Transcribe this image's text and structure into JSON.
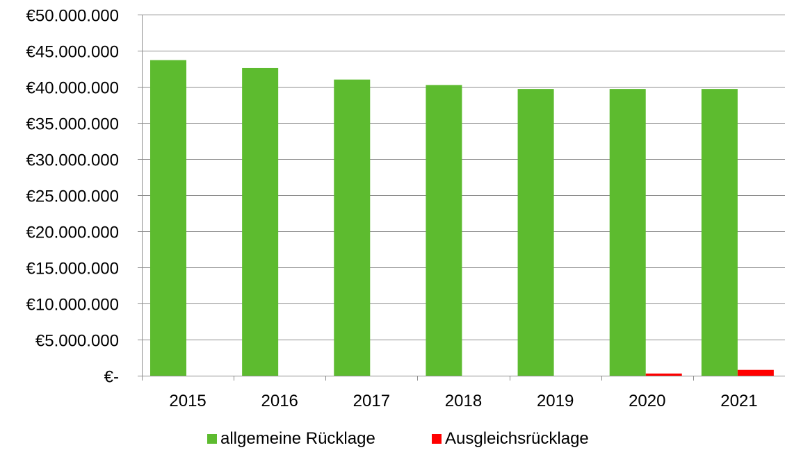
{
  "chart_data": {
    "type": "bar",
    "title": "",
    "xlabel": "",
    "ylabel": "",
    "categories": [
      "2015",
      "2016",
      "2017",
      "2018",
      "2019",
      "2020",
      "2021"
    ],
    "series": [
      {
        "name": "allgemeine Rücklage",
        "color": "#5DBB2F",
        "values": [
          43700000,
          42600000,
          41000000,
          40250000,
          39700000,
          39700000,
          39700000
        ]
      },
      {
        "name": "Ausgleichsrücklage",
        "color": "#FF0000",
        "values": [
          0,
          0,
          0,
          0,
          0,
          300000,
          800000
        ]
      }
    ],
    "ylim": [
      0,
      50000000
    ],
    "yticks": [
      0,
      5000000,
      10000000,
      15000000,
      20000000,
      25000000,
      30000000,
      35000000,
      40000000,
      45000000,
      50000000
    ],
    "ytick_labels": [
      "€-",
      "€5.000.000",
      "€10.000.000",
      "€15.000.000",
      "€20.000.000",
      "€25.000.000",
      "€30.000.000",
      "€35.000.000",
      "€40.000.000",
      "€45.000.000",
      "€50.000.000"
    ],
    "grid": true,
    "legend_position": "bottom"
  }
}
